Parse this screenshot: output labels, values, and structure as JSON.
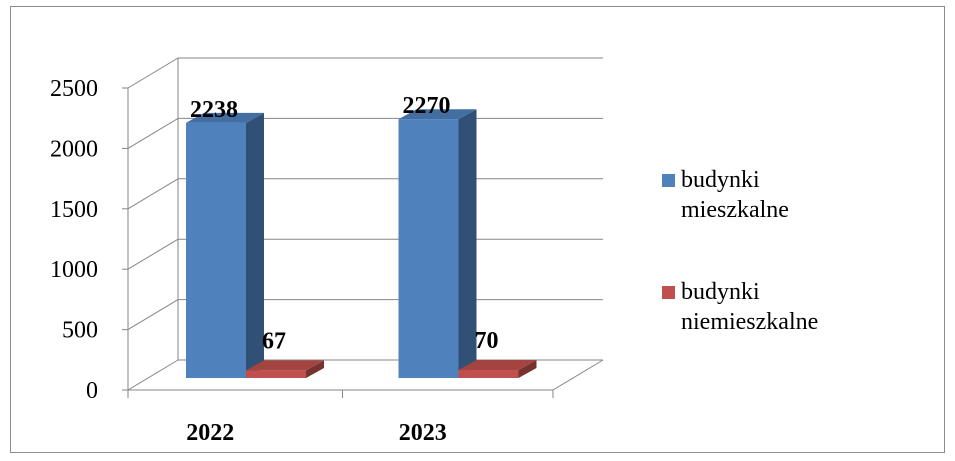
{
  "chart_data": {
    "type": "bar",
    "categories": [
      "2022",
      "2023"
    ],
    "series": [
      {
        "name": "budynki mieszkalne",
        "values": [
          2238,
          2270
        ],
        "color": "#4F81BD"
      },
      {
        "name": "budynki niemieszkalne",
        "values": [
          67,
          70
        ],
        "color": "#C0504D"
      }
    ],
    "ylim": [
      0,
      2500
    ],
    "yticks": [
      "0",
      "500",
      "1000",
      "1500",
      "2000",
      "2500"
    ],
    "data_labels": [
      [
        "2238",
        "2270"
      ],
      [
        "67",
        "70"
      ]
    ],
    "grid": true,
    "legend": "right"
  }
}
